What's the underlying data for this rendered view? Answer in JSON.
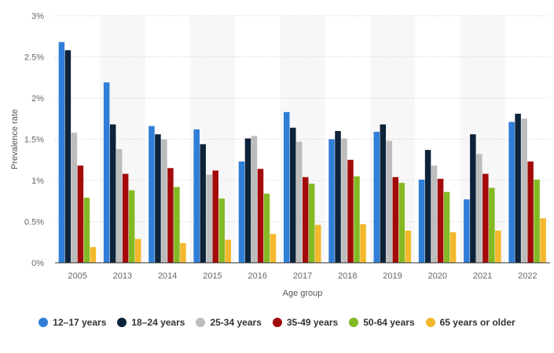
{
  "chart_data": {
    "type": "bar",
    "categories": [
      "2005",
      "2013",
      "2014",
      "2015",
      "2016",
      "2017",
      "2018",
      "2019",
      "2020",
      "2021",
      "2022"
    ],
    "series": [
      {
        "name": "12–17 years",
        "color": "#2f7ed8",
        "values": [
          2.68,
          2.19,
          1.66,
          1.62,
          1.23,
          1.83,
          1.5,
          1.59,
          1.01,
          0.77,
          1.71
        ]
      },
      {
        "name": "18–24 years",
        "color": "#0d233a",
        "values": [
          2.58,
          1.68,
          1.56,
          1.44,
          1.51,
          1.64,
          1.6,
          1.68,
          1.37,
          1.56,
          1.81
        ]
      },
      {
        "name": "25-34 years",
        "color": "#bdbdbd",
        "values": [
          1.58,
          1.38,
          1.5,
          1.07,
          1.54,
          1.47,
          1.51,
          1.48,
          1.18,
          1.32,
          1.75
        ]
      },
      {
        "name": "35-49 years",
        "color": "#a30a0a",
        "values": [
          1.18,
          1.08,
          1.15,
          1.12,
          1.14,
          1.04,
          1.25,
          1.04,
          1.02,
          1.08,
          1.23
        ]
      },
      {
        "name": "50-64 years",
        "color": "#84b924",
        "values": [
          0.79,
          0.88,
          0.92,
          0.78,
          0.84,
          0.96,
          1.05,
          0.97,
          0.86,
          0.91,
          1.01
        ]
      },
      {
        "name": "65 years or older",
        "color": "#f3b82b",
        "values": [
          0.19,
          0.29,
          0.24,
          0.28,
          0.35,
          0.46,
          0.47,
          0.39,
          0.37,
          0.39,
          0.54
        ]
      }
    ],
    "xlabel": "Age group",
    "ylabel": "Prevalence rate",
    "ylim": [
      0,
      3
    ],
    "yticks": [
      "0%",
      "0.5%",
      "1%",
      "1.5%",
      "2%",
      "2.5%",
      "3%"
    ],
    "grid": "horizontal dotted",
    "legend": "bottom"
  }
}
